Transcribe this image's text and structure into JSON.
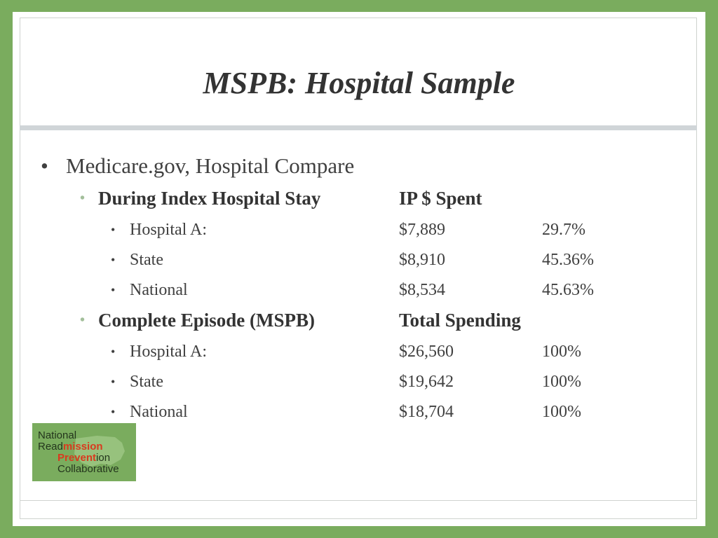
{
  "slide": {
    "title": "MSPB: Hospital Sample",
    "bullet": "Medicare.gov, Hospital Compare",
    "sections": [
      {
        "heading": "During Index Hospital Stay",
        "column_heading": "IP $ Spent",
        "rows": [
          {
            "label": "Hospital A:",
            "amount": "$7,889",
            "percent": "29.7%"
          },
          {
            "label": "State",
            "amount": "$8,910",
            "percent": "45.36%"
          },
          {
            "label": "National",
            "amount": "$8,534",
            "percent": "45.63%"
          }
        ]
      },
      {
        "heading": "Complete Episode (MSPB)",
        "column_heading": "Total Spending",
        "rows": [
          {
            "label": "Hospital A:",
            "amount": "$26,560",
            "percent": "100%"
          },
          {
            "label": "State",
            "amount": "$19,642",
            "percent": "100%"
          },
          {
            "label": "National",
            "amount": "$18,704",
            "percent": "100%"
          }
        ]
      }
    ]
  },
  "logo": {
    "line1": "National",
    "line2_a": "Read",
    "line2_b": "mission",
    "line3_a": "Prevent",
    "line3_b": "ion",
    "line4": "Collaborative"
  },
  "colors": {
    "background": "#7aac5e",
    "accent_bullet": "#a3bf9b",
    "logo_highlight": "#d93a1e"
  }
}
